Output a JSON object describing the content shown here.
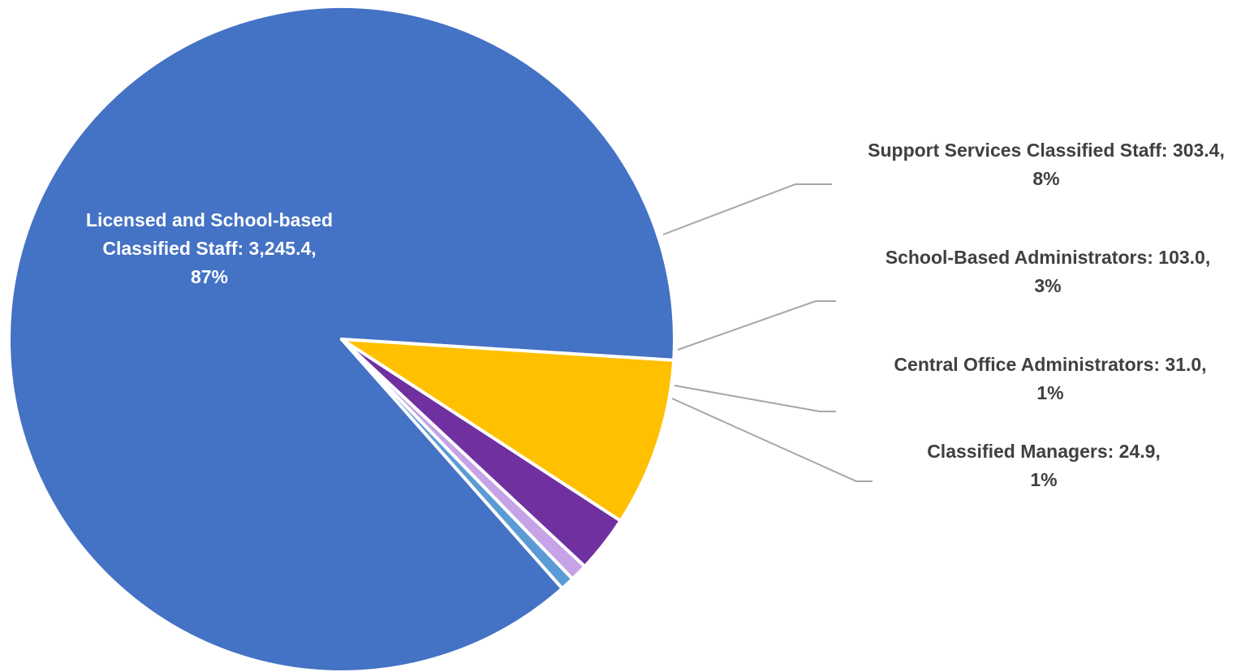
{
  "chart_data": {
    "type": "pie",
    "title": "",
    "slices": [
      {
        "name": "Licensed and School-based Classified Staff",
        "value": 3245.4,
        "value_text": "3,245.4",
        "percent_text": "87%",
        "color": "#4472c4",
        "label_lines": [
          "Licensed and School-based",
          "Classified Staff: 3,245.4,",
          "87%"
        ],
        "label_position": "inside"
      },
      {
        "name": "Support Services Classified Staff",
        "value": 303.4,
        "value_text": "303.4",
        "percent_text": "8%",
        "color": "#ffc000",
        "label_lines": [
          "Support Services Classified Staff: 303.4,",
          "8%"
        ],
        "label_position": "outside"
      },
      {
        "name": "School-Based Administrators",
        "value": 103.0,
        "value_text": "103.0",
        "percent_text": "3%",
        "color": "#7030a0",
        "label_lines": [
          "School-Based Administrators: 103.0,",
          "3%"
        ],
        "label_position": "outside"
      },
      {
        "name": "Central Office Administrators",
        "value": 31.0,
        "value_text": "31.0",
        "percent_text": "1%",
        "color": "#c5a3e6",
        "label_lines": [
          "Central Office Administrators: 31.0,",
          "1%"
        ],
        "label_position": "outside"
      },
      {
        "name": "Classified Managers",
        "value": 24.9,
        "value_text": "24.9",
        "percent_text": "1%",
        "color": "#5b9bd5",
        "label_lines": [
          "Classified Managers: 24.9,",
          "1%"
        ],
        "label_position": "outside"
      }
    ],
    "legend": "none",
    "data_labels": "category, value, percent"
  }
}
